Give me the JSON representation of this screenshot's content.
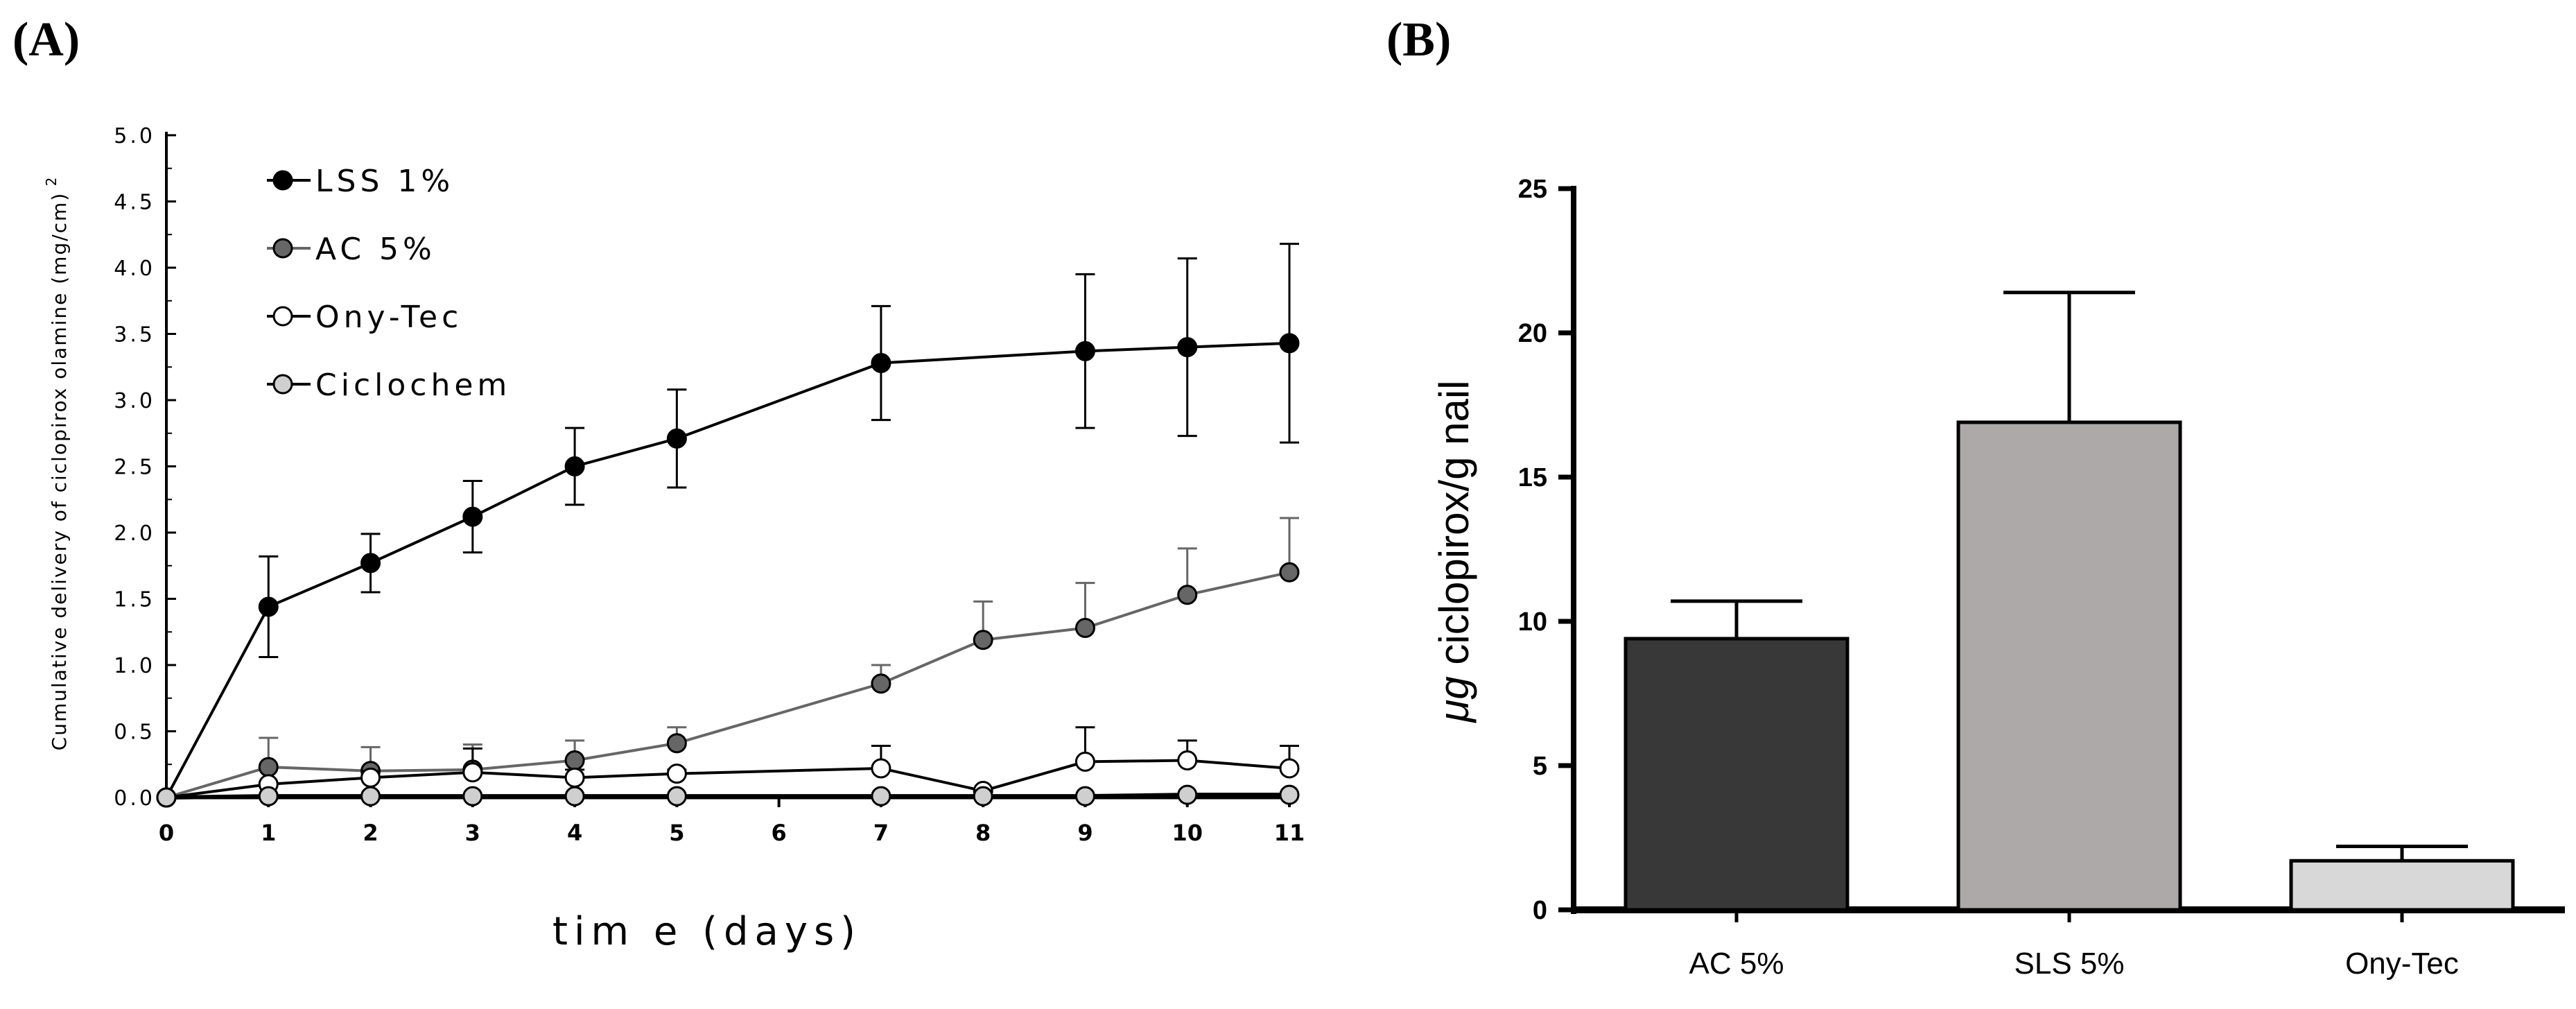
{
  "panels": {
    "a_label": "(A)",
    "b_label": "(B)"
  },
  "chart_data": [
    {
      "type": "line",
      "title": "",
      "xlabel": "tim e (days)",
      "ylabel": "Cumulative delivery of ciclopirox olamine (mg/cm)",
      "ylabel_superscript": "2",
      "x": [
        0,
        1,
        2,
        3,
        4,
        5,
        7,
        8,
        9,
        10,
        11
      ],
      "xticks": [
        "0",
        "1",
        "2",
        "3",
        "4",
        "5",
        "6",
        "7",
        "8",
        "9",
        "10",
        "11"
      ],
      "yticks": [
        "0.0",
        "0.5",
        "1.0",
        "1.5",
        "2.0",
        "2.5",
        "3.0",
        "3.5",
        "4.0",
        "4.5",
        "5.0"
      ],
      "xlim": [
        0,
        11
      ],
      "ylim": [
        0,
        5.0
      ],
      "legend_position": "top-left",
      "series": [
        {
          "name": "LSS 1%",
          "color": "#000000",
          "marker_fill": "#000000",
          "line_color": "#000000",
          "values": [
            0,
            1.44,
            1.77,
            2.12,
            2.5,
            2.71,
            3.28,
            null,
            3.37,
            3.4,
            3.43
          ],
          "errors": [
            0,
            0.38,
            0.22,
            0.27,
            0.29,
            0.37,
            0.43,
            null,
            0.58,
            0.67,
            0.75
          ]
        },
        {
          "name": "AC 5%",
          "color": "#666666",
          "marker_fill": "#666666",
          "line_color": "#666666",
          "values": [
            0,
            0.23,
            0.2,
            0.21,
            0.28,
            0.41,
            0.86,
            1.19,
            1.28,
            1.53,
            1.7
          ],
          "errors": [
            0,
            0.22,
            0.18,
            0.19,
            0.15,
            0.12,
            0.14,
            0.29,
            0.34,
            0.35,
            0.41
          ]
        },
        {
          "name": "Ony-Tec",
          "color": "#000000",
          "marker_fill": "#ffffff",
          "line_color": "#000000",
          "values": [
            0,
            0.1,
            0.15,
            0.19,
            0.15,
            0.18,
            0.22,
            0.05,
            0.27,
            0.28,
            0.22
          ],
          "errors": [
            0,
            0.02,
            0.05,
            0.18,
            0.06,
            0.03,
            0.17,
            0.02,
            0.26,
            0.15,
            0.17
          ]
        },
        {
          "name": "Ciclochem",
          "color": "#000000",
          "marker_fill": "#cfcfcf",
          "line_color": "#000000",
          "values": [
            0,
            0.01,
            0.01,
            0.01,
            0.01,
            0.01,
            0.01,
            0.01,
            0.01,
            0.02,
            0.02
          ],
          "errors": [
            0,
            0,
            0,
            0,
            0,
            0,
            0,
            0,
            0,
            0,
            0
          ]
        }
      ]
    },
    {
      "type": "bar",
      "title": "",
      "categories": [
        "AC 5%",
        "SLS 5%",
        "Ony-Tec"
      ],
      "values": [
        9.4,
        16.9,
        1.7
      ],
      "errors": [
        1.3,
        4.5,
        0.5
      ],
      "colors": [
        "#383838",
        "#aca9a8",
        "#d8d8d8"
      ],
      "ylabel_mu": "μg",
      "ylabel_rest": " ciclopirox/g nail",
      "yticks": [
        "0",
        "5",
        "10",
        "15",
        "20",
        "25"
      ],
      "ylim": [
        0,
        25
      ]
    }
  ]
}
